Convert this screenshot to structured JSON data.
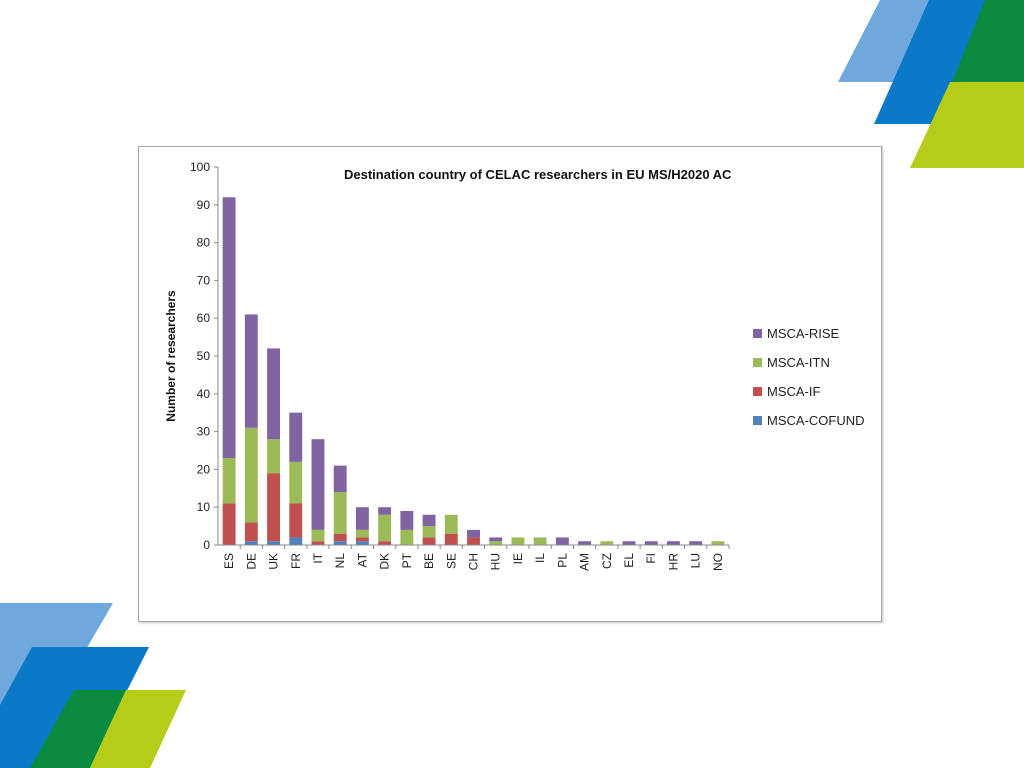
{
  "branding": {
    "colors": {
      "light_blue": "#6fa8dc",
      "blue": "#0b78c8",
      "green": "#0a8a3e",
      "lime": "#b5cc18"
    }
  },
  "chart_data": {
    "type": "bar",
    "stacked": true,
    "title": "Destination country of CELAC researchers in EU MS/H2020 AC",
    "xlabel": "",
    "ylabel": "Number of researchers",
    "ylim": [
      0,
      100
    ],
    "yticks": [
      0,
      10,
      20,
      30,
      40,
      50,
      60,
      70,
      80,
      90,
      100
    ],
    "grid": false,
    "legend_position": "right",
    "categories": [
      "ES",
      "DE",
      "UK",
      "FR",
      "IT",
      "NL",
      "AT",
      "DK",
      "PT",
      "BE",
      "SE",
      "CH",
      "HU",
      "IE",
      "IL",
      "PL",
      "AM",
      "CZ",
      "EL",
      "FI",
      "HR",
      "LU",
      "NO"
    ],
    "series": [
      {
        "name": "MSCA-COFUND",
        "color": "#4f81bd",
        "values": [
          0,
          1,
          1,
          2,
          0,
          1,
          1,
          0,
          0,
          0,
          0,
          0,
          0,
          0,
          0,
          0,
          0,
          0,
          0,
          0,
          0,
          0,
          0
        ]
      },
      {
        "name": "MSCA-IF",
        "color": "#c0504d",
        "values": [
          11,
          5,
          18,
          9,
          1,
          2,
          1,
          1,
          0,
          2,
          3,
          2,
          0,
          0,
          0,
          0,
          0,
          0,
          0,
          0,
          0,
          0,
          0
        ]
      },
      {
        "name": "MSCA-ITN",
        "color": "#9bbb59",
        "values": [
          12,
          25,
          9,
          11,
          3,
          11,
          2,
          7,
          4,
          3,
          5,
          0,
          1,
          2,
          2,
          0,
          0,
          1,
          0,
          0,
          0,
          0,
          1
        ]
      },
      {
        "name": "MSCA-RISE",
        "color": "#8064a2",
        "values": [
          69,
          30,
          24,
          13,
          24,
          7,
          6,
          2,
          5,
          3,
          0,
          2,
          1,
          0,
          0,
          2,
          1,
          0,
          1,
          1,
          1,
          1,
          0
        ]
      }
    ],
    "legend_order": [
      "MSCA-RISE",
      "MSCA-ITN",
      "MSCA-IF",
      "MSCA-COFUND"
    ]
  }
}
